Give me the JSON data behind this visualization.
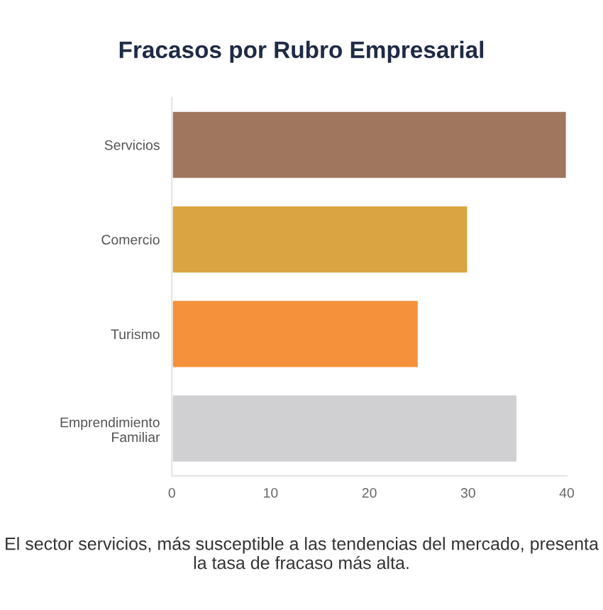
{
  "chart_data": {
    "type": "bar",
    "orientation": "horizontal",
    "title": "Fracasos por Rubro Empresarial",
    "categories": [
      "Servicios",
      "Comercio",
      "Turismo",
      "Emprendimiento\nFamiliar"
    ],
    "values": [
      40,
      30,
      25,
      35
    ],
    "colors": [
      "#a0765f",
      "#d9a441",
      "#f5913a",
      "#d0d0d2"
    ],
    "xlim": [
      0,
      40
    ],
    "xticks": [
      0,
      10,
      20,
      30,
      40
    ],
    "grid": false,
    "legend": false,
    "annotations": [
      "El sector servicios, más susceptible a las tendencias del mercado, presenta la tasa de fracaso más alta."
    ]
  }
}
